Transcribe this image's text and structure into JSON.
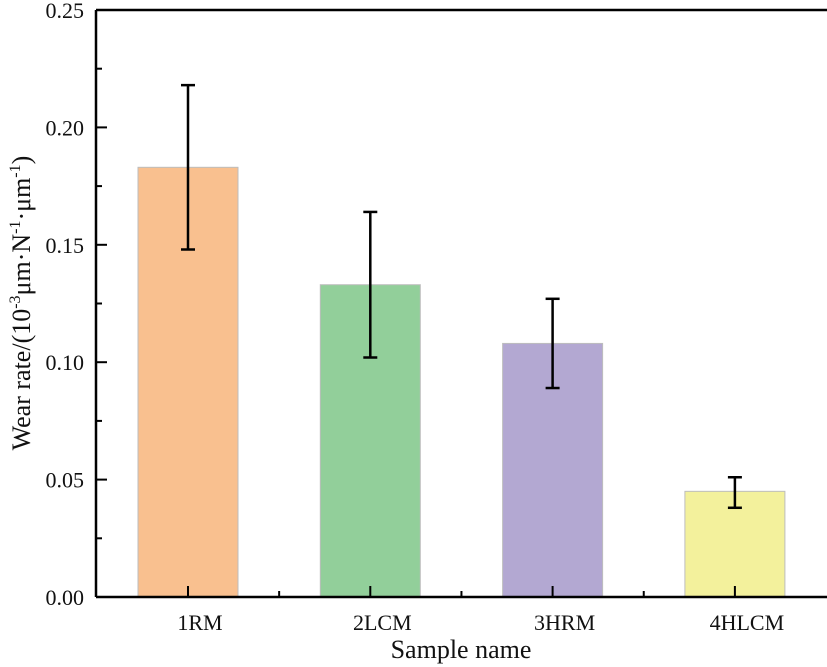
{
  "chart_data": {
    "type": "bar",
    "title": "",
    "xlabel": "Sample name",
    "ylabel": "Wear rate/(10",
    "ylabel_parts": {
      "prefix": "Wear rate/(10",
      "exp1": "-3",
      "mid1": "μm·N",
      "exp2": "-1",
      "mid2": "·μm",
      "exp3": "-1",
      "suffix": ")"
    },
    "categories": [
      "1RM",
      "2LCM",
      "3HRM",
      "4HLCM"
    ],
    "values": [
      0.183,
      0.133,
      0.108,
      0.045
    ],
    "error_low": [
      0.148,
      0.102,
      0.089,
      0.038
    ],
    "error_high": [
      0.218,
      0.164,
      0.127,
      0.051
    ],
    "colors": [
      "#f9c08f",
      "#92cf9a",
      "#b3a8d2",
      "#f3f19c"
    ],
    "ylim": [
      0,
      0.25
    ],
    "yticks": [
      "0.00",
      "0.05",
      "0.10",
      "0.15",
      "0.20",
      "0.25"
    ],
    "grid": false,
    "legend": "none"
  }
}
